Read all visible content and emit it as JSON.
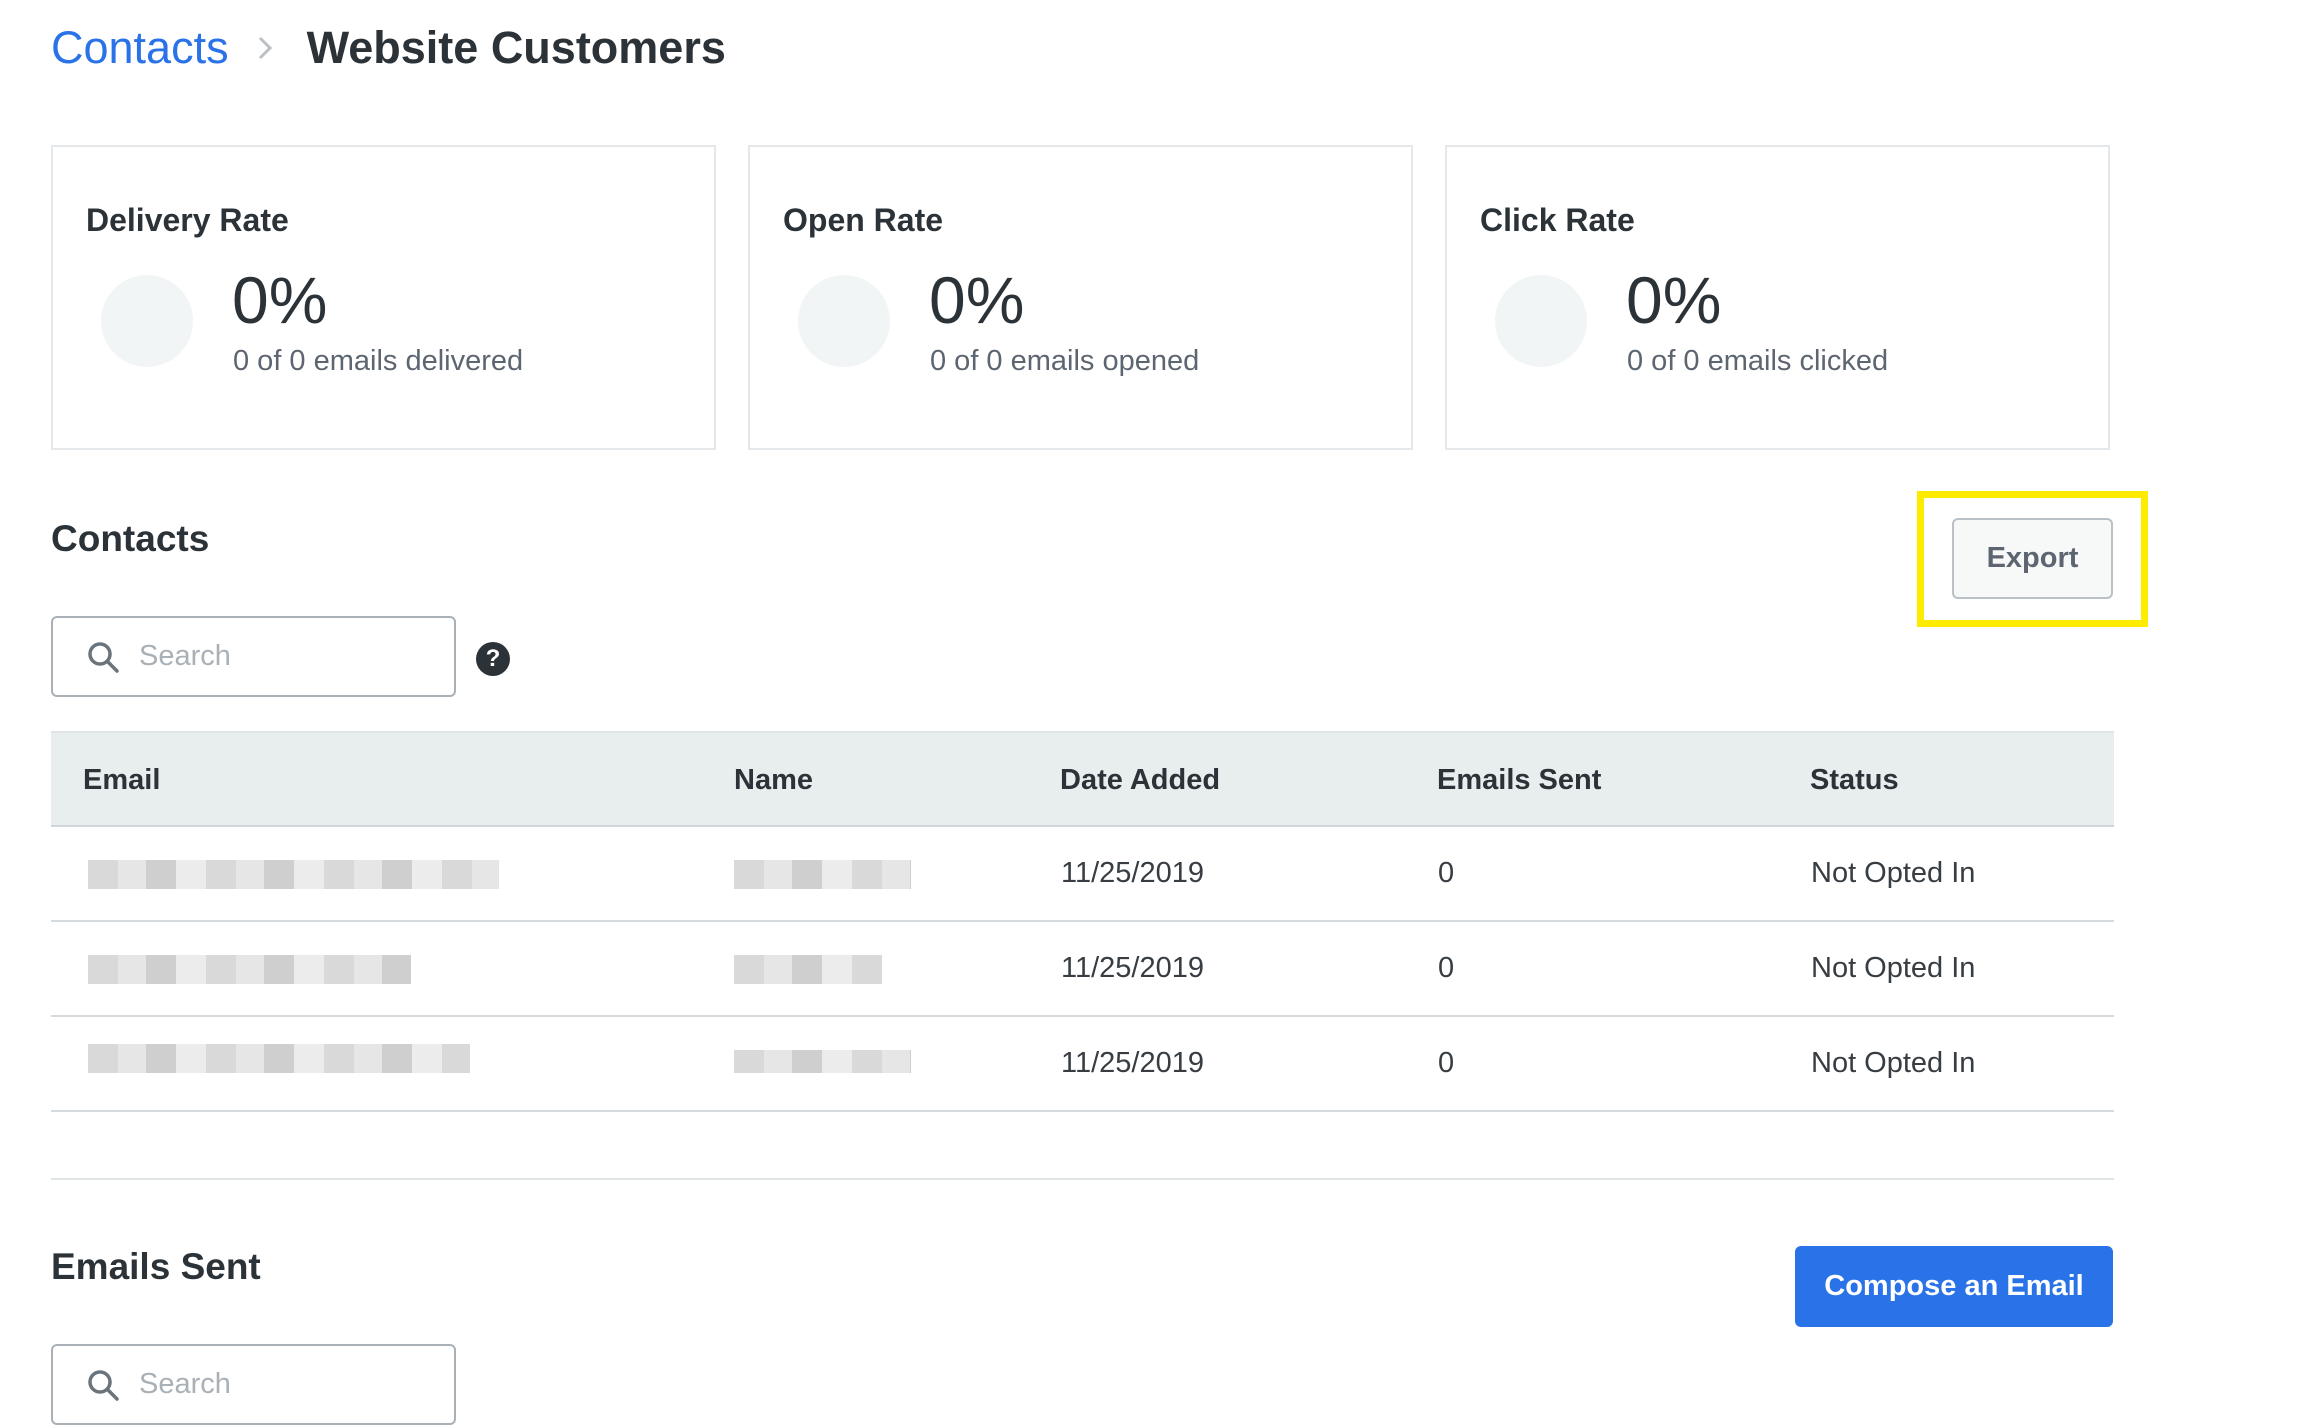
{
  "breadcrumb": {
    "parent": "Contacts",
    "current": "Website Customers"
  },
  "stats": [
    {
      "title": "Delivery Rate",
      "percent": "0%",
      "subtitle": "0 of 0 emails delivered"
    },
    {
      "title": "Open Rate",
      "percent": "0%",
      "subtitle": "0 of 0 emails opened"
    },
    {
      "title": "Click Rate",
      "percent": "0%",
      "subtitle": "0 of 0 emails clicked"
    }
  ],
  "contacts": {
    "title": "Contacts",
    "export_label": "Export",
    "search_placeholder": "Search",
    "help_glyph": "?",
    "columns": [
      "Email",
      "Name",
      "Date Added",
      "Emails Sent",
      "Status"
    ],
    "rows": [
      {
        "date_added": "11/25/2019",
        "emails_sent": "0",
        "status": "Not Opted In"
      },
      {
        "date_added": "11/25/2019",
        "emails_sent": "0",
        "status": "Not Opted In"
      },
      {
        "date_added": "11/25/2019",
        "emails_sent": "0",
        "status": "Not Opted In"
      }
    ]
  },
  "emails_sent": {
    "title": "Emails Sent",
    "compose_label": "Compose an Email",
    "search_placeholder": "Search"
  },
  "colors": {
    "accent": "#2a72e8",
    "highlight": "#ffeb00"
  },
  "icons": {
    "breadcrumb_separator": "chevron-right-icon",
    "search": "search-icon",
    "help": "help-icon"
  }
}
